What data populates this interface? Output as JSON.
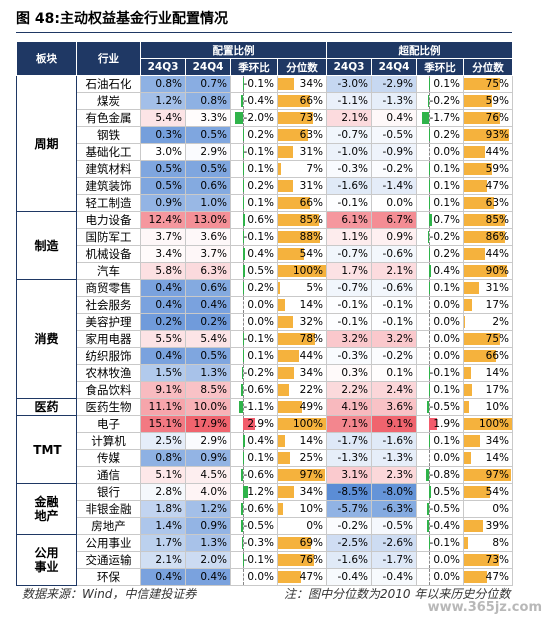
{
  "title": "图 48:主动权益基金行业配置情况",
  "header": {
    "group": "板块",
    "industry": "行业",
    "sections": [
      "配置比例",
      "超配比例"
    ],
    "columns": [
      "24Q3",
      "24Q4",
      "季环比",
      "分位数",
      "24Q3",
      "24Q4",
      "季环比",
      "分位数"
    ]
  },
  "groups": [
    {
      "label": "周期",
      "rows": [
        {
          "industry": "石油石化",
          "cells": [
            "0.8%",
            "0.7%",
            "-0.1%",
            "34%",
            "-3.0%",
            "-2.9%",
            "0.1%",
            "75%"
          ]
        },
        {
          "industry": "煤炭",
          "cells": [
            "1.2%",
            "0.8%",
            "-0.4%",
            "66%",
            "-1.1%",
            "-1.3%",
            "-0.2%",
            "59%"
          ]
        },
        {
          "industry": "有色金属",
          "cells": [
            "5.4%",
            "3.3%",
            "-2.0%",
            "73%",
            "2.1%",
            "0.4%",
            "-1.7%",
            "76%"
          ]
        },
        {
          "industry": "钢铁",
          "cells": [
            "0.3%",
            "0.5%",
            "0.2%",
            "63%",
            "-0.7%",
            "-0.5%",
            "0.2%",
            "93%"
          ]
        },
        {
          "industry": "基础化工",
          "cells": [
            "3.0%",
            "2.9%",
            "-0.1%",
            "31%",
            "-1.0%",
            "-0.9%",
            "0.0%",
            "44%"
          ]
        },
        {
          "industry": "建筑材料",
          "cells": [
            "0.5%",
            "0.5%",
            "0.1%",
            "7%",
            "-0.3%",
            "-0.2%",
            "0.1%",
            "59%"
          ]
        },
        {
          "industry": "建筑装饰",
          "cells": [
            "0.5%",
            "0.6%",
            "0.2%",
            "31%",
            "-1.6%",
            "-1.4%",
            "0.1%",
            "47%"
          ]
        },
        {
          "industry": "轻工制造",
          "cells": [
            "0.9%",
            "1.0%",
            "0.1%",
            "66%",
            "-0.1%",
            "0.0%",
            "0.1%",
            "63%"
          ]
        }
      ]
    },
    {
      "label": "制造",
      "rows": [
        {
          "industry": "电力设备",
          "cells": [
            "12.4%",
            "13.0%",
            "0.6%",
            "85%",
            "6.1%",
            "6.7%",
            "0.7%",
            "85%"
          ]
        },
        {
          "industry": "国防军工",
          "cells": [
            "3.7%",
            "3.6%",
            "-0.1%",
            "88%",
            "1.1%",
            "0.9%",
            "-0.2%",
            "86%"
          ]
        },
        {
          "industry": "机械设备",
          "cells": [
            "3.4%",
            "3.7%",
            "0.4%",
            "54%",
            "-0.7%",
            "-0.6%",
            "0.2%",
            "44%"
          ]
        },
        {
          "industry": "汽车",
          "cells": [
            "5.8%",
            "6.3%",
            "0.5%",
            "100%",
            "1.7%",
            "2.1%",
            "0.4%",
            "90%"
          ]
        }
      ]
    },
    {
      "label": "消费",
      "rows": [
        {
          "industry": "商贸零售",
          "cells": [
            "0.4%",
            "0.6%",
            "0.2%",
            "5%",
            "-0.7%",
            "-0.6%",
            "0.1%",
            "31%"
          ]
        },
        {
          "industry": "社会服务",
          "cells": [
            "0.4%",
            "0.4%",
            "0.0%",
            "14%",
            "-0.1%",
            "-0.1%",
            "0.0%",
            "17%"
          ]
        },
        {
          "industry": "美容护理",
          "cells": [
            "0.2%",
            "0.2%",
            "0.0%",
            "32%",
            "-0.1%",
            "-0.1%",
            "0.0%",
            "2%"
          ]
        },
        {
          "industry": "家用电器",
          "cells": [
            "5.5%",
            "5.4%",
            "-0.1%",
            "78%",
            "3.2%",
            "3.2%",
            "0.0%",
            "75%"
          ]
        },
        {
          "industry": "纺织服饰",
          "cells": [
            "0.4%",
            "0.5%",
            "0.1%",
            "44%",
            "-0.3%",
            "-0.2%",
            "0.0%",
            "66%"
          ]
        },
        {
          "industry": "农林牧渔",
          "cells": [
            "1.5%",
            "1.3%",
            "-0.2%",
            "34%",
            "0.3%",
            "0.1%",
            "-0.1%",
            "14%"
          ]
        },
        {
          "industry": "食品饮料",
          "cells": [
            "9.1%",
            "8.5%",
            "-0.6%",
            "22%",
            "2.2%",
            "2.4%",
            "0.1%",
            "17%"
          ]
        }
      ]
    },
    {
      "label": "医药",
      "rows": [
        {
          "industry": "医药生物",
          "cells": [
            "11.1%",
            "10.0%",
            "-1.1%",
            "49%",
            "4.1%",
            "3.6%",
            "-0.5%",
            "10%"
          ]
        }
      ]
    },
    {
      "label": "TMT",
      "rows": [
        {
          "industry": "电子",
          "cells": [
            "15.1%",
            "17.9%",
            "2.9%",
            "100%",
            "7.1%",
            "9.1%",
            "1.9%",
            "100%"
          ]
        },
        {
          "industry": "计算机",
          "cells": [
            "2.5%",
            "2.9%",
            "0.4%",
            "14%",
            "-1.7%",
            "-1.6%",
            "0.1%",
            "34%"
          ]
        },
        {
          "industry": "传媒",
          "cells": [
            "0.8%",
            "0.9%",
            "0.1%",
            "25%",
            "-1.3%",
            "-1.3%",
            "0.0%",
            "14%"
          ]
        },
        {
          "industry": "通信",
          "cells": [
            "5.1%",
            "4.5%",
            "-0.6%",
            "97%",
            "3.1%",
            "2.3%",
            "-0.8%",
            "97%"
          ]
        }
      ]
    },
    {
      "label": "金融地产",
      "rows": [
        {
          "industry": "银行",
          "cells": [
            "2.8%",
            "4.0%",
            "1.2%",
            "34%",
            "-8.5%",
            "-8.0%",
            "0.5%",
            "54%"
          ]
        },
        {
          "industry": "非银金融",
          "cells": [
            "1.8%",
            "1.2%",
            "-0.6%",
            "10%",
            "-5.7%",
            "-6.3%",
            "-0.5%",
            "0%"
          ]
        },
        {
          "industry": "房地产",
          "cells": [
            "1.4%",
            "0.9%",
            "-0.5%",
            "0%",
            "-0.2%",
            "-0.5%",
            "-0.4%",
            "39%"
          ]
        }
      ]
    },
    {
      "label": "公用事业",
      "rows": [
        {
          "industry": "公用事业",
          "cells": [
            "1.7%",
            "1.3%",
            "-0.3%",
            "69%",
            "-2.5%",
            "-2.6%",
            "-0.1%",
            "8%"
          ]
        },
        {
          "industry": "交通运输",
          "cells": [
            "2.1%",
            "2.0%",
            "-0.1%",
            "76%",
            "-1.6%",
            "-1.7%",
            "0.0%",
            "73%"
          ]
        },
        {
          "industry": "环保",
          "cells": [
            "0.4%",
            "0.4%",
            "0.0%",
            "47%",
            "-0.4%",
            "-0.4%",
            "0.0%",
            "47%"
          ]
        }
      ]
    }
  ],
  "footer": {
    "source": "数据来源：Wind，中信建投证券",
    "note": "注：图中分位数为2010 年以来历史分位数"
  },
  "watermark": "www.365jz.com"
}
